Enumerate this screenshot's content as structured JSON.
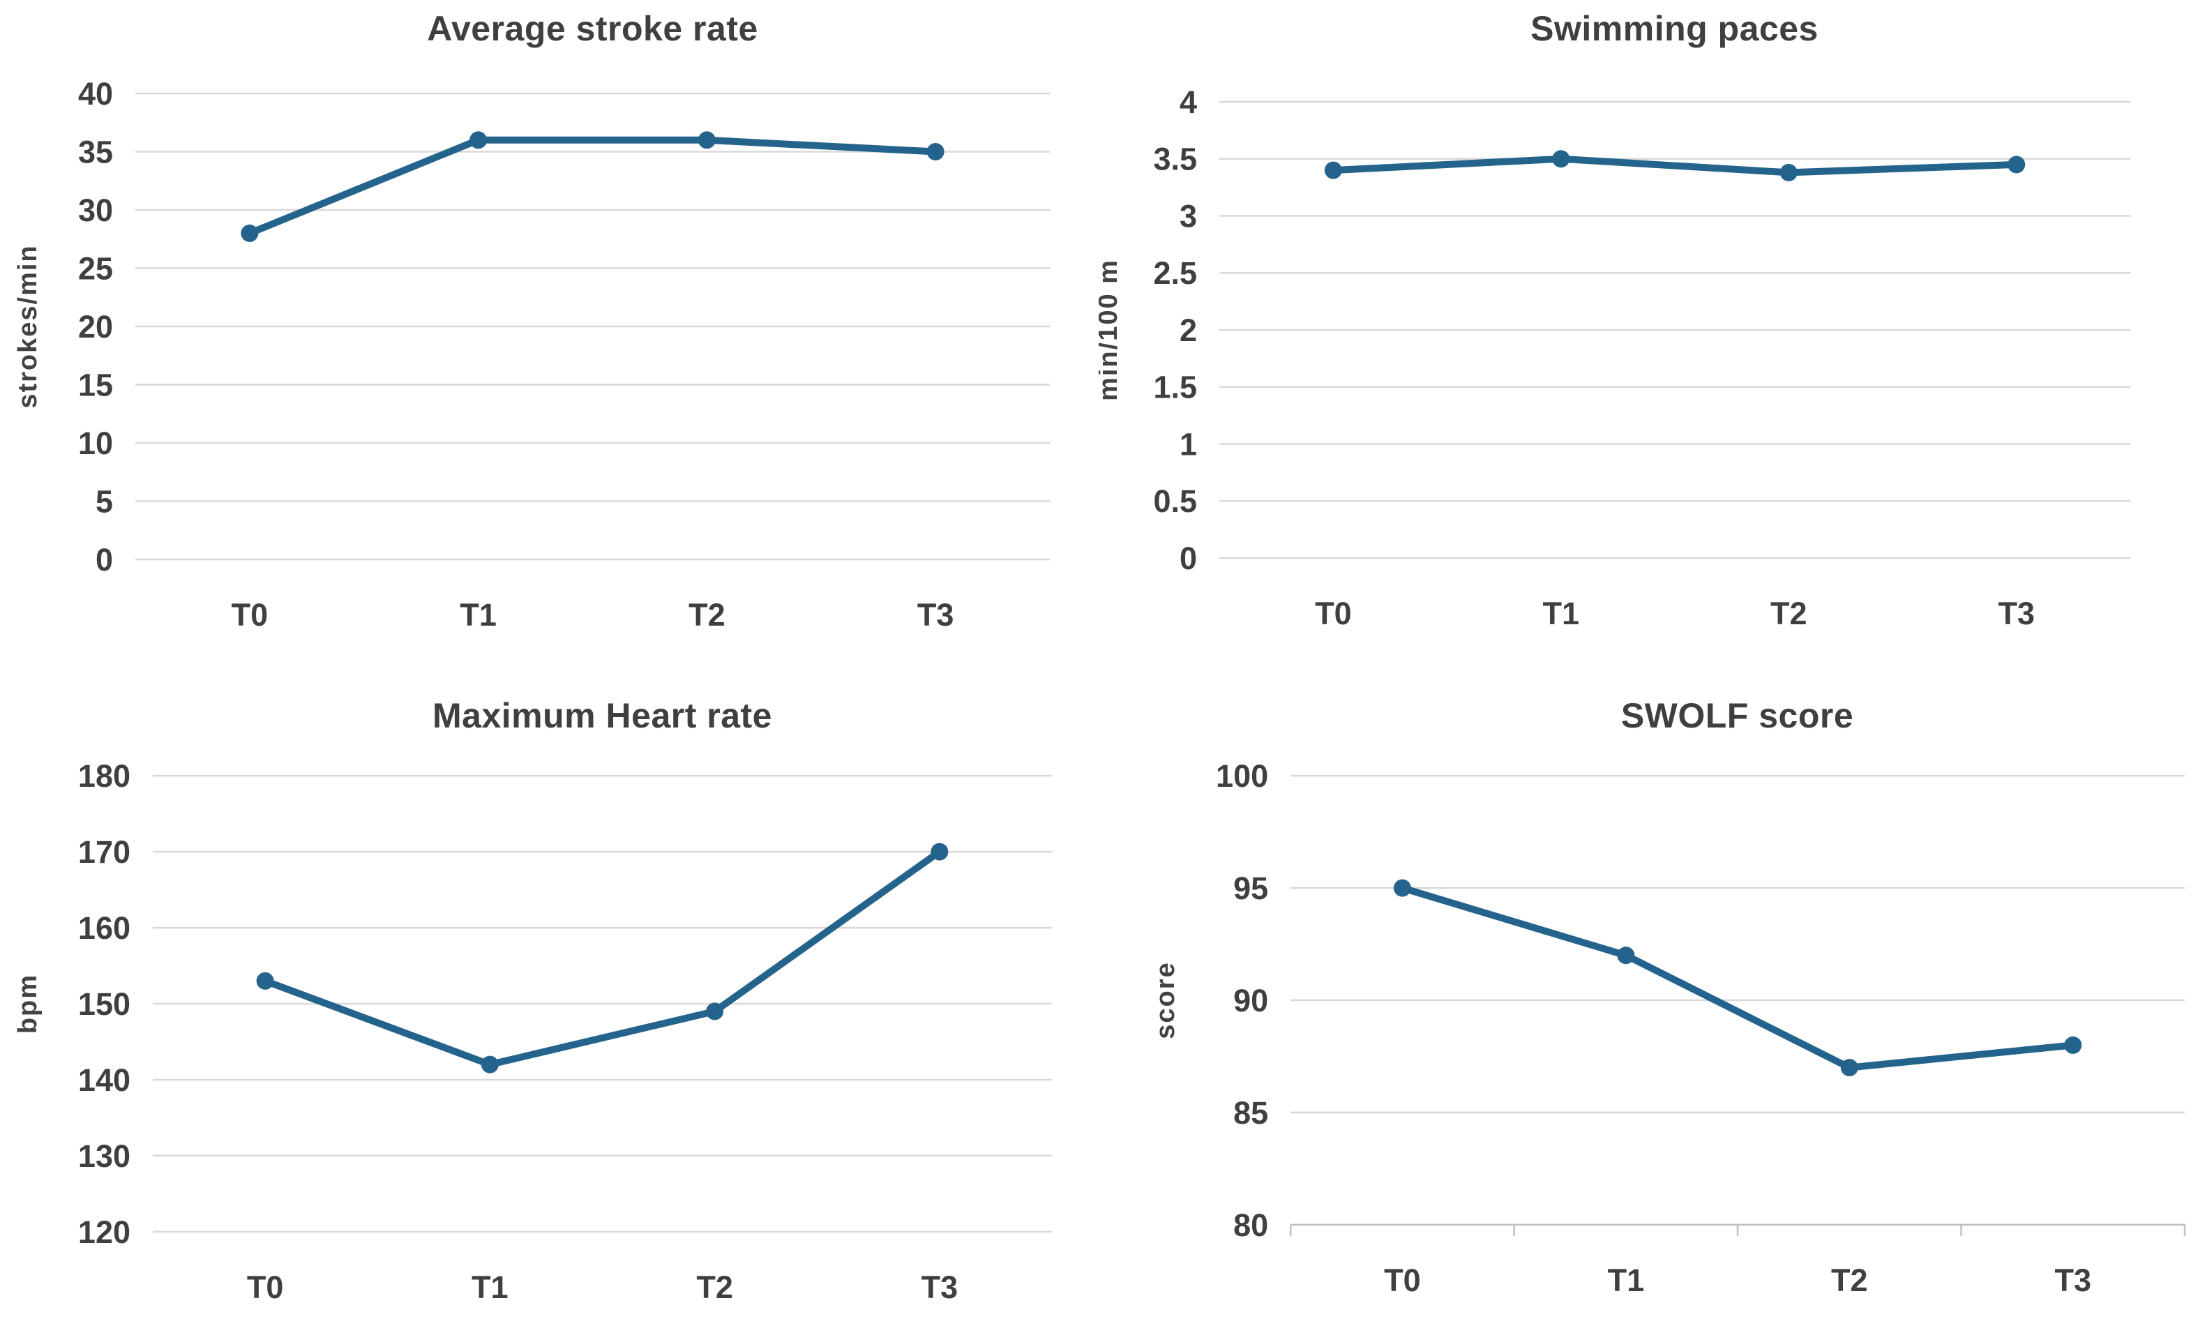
{
  "figure": {
    "background": "#ffffff",
    "panel_count": 4,
    "colors": {
      "series_line": "#24648c",
      "marker": "#24648c",
      "gridline": "#d8d8d8",
      "axis_line": "#bfbfbf",
      "text": "#3f3f3f"
    }
  },
  "chart_data": [
    {
      "type": "line",
      "title": "Average stroke rate",
      "xlabel": "",
      "ylabel": "strokes/min",
      "categories": [
        "T0",
        "T1",
        "T2",
        "T3"
      ],
      "series": [
        {
          "name": "Average stroke rate",
          "values": [
            28,
            36,
            36,
            35
          ]
        }
      ],
      "ylim": [
        0,
        40
      ],
      "ytick_step": 5,
      "ytick_labels": [
        "0",
        "5",
        "10",
        "15",
        "20",
        "25",
        "30",
        "35",
        "40"
      ],
      "grid": "horizontal",
      "legend": "none",
      "marker": "circle",
      "x_axis_ticks": false
    },
    {
      "type": "line",
      "title": "Swimming paces",
      "xlabel": "",
      "ylabel": "min/100 m",
      "categories": [
        "T0",
        "T1",
        "T2",
        "T3"
      ],
      "series": [
        {
          "name": "Swimming paces",
          "values": [
            3.4,
            3.5,
            3.38,
            3.45
          ]
        }
      ],
      "ylim": [
        0,
        4
      ],
      "ytick_step": 0.5,
      "ytick_labels": [
        "0",
        "0.5",
        "1",
        "1.5",
        "2",
        "2.5",
        "3",
        "3.5",
        "4"
      ],
      "grid": "horizontal",
      "legend": "none",
      "marker": "circle",
      "x_axis_ticks": false
    },
    {
      "type": "line",
      "title": "Maximum Heart rate",
      "xlabel": "",
      "ylabel": "bpm",
      "categories": [
        "T0",
        "T1",
        "T2",
        "T3"
      ],
      "series": [
        {
          "name": "Maximum Heart rate",
          "values": [
            153,
            142,
            149,
            170
          ]
        }
      ],
      "ylim": [
        120,
        180
      ],
      "ytick_step": 10,
      "ytick_labels": [
        "120",
        "130",
        "140",
        "150",
        "160",
        "170",
        "180"
      ],
      "grid": "horizontal",
      "legend": "none",
      "marker": "circle",
      "x_axis_ticks": false
    },
    {
      "type": "line",
      "title": "SWOLF score",
      "xlabel": "",
      "ylabel": "score",
      "categories": [
        "T0",
        "T1",
        "T2",
        "T3"
      ],
      "series": [
        {
          "name": "SWOLF score",
          "values": [
            95,
            92,
            87,
            88
          ]
        }
      ],
      "ylim": [
        80,
        100
      ],
      "ytick_step": 5,
      "ytick_labels": [
        "80",
        "85",
        "90",
        "95",
        "100"
      ],
      "grid": "horizontal",
      "legend": "none",
      "marker": "circle",
      "x_axis_ticks": true
    }
  ]
}
